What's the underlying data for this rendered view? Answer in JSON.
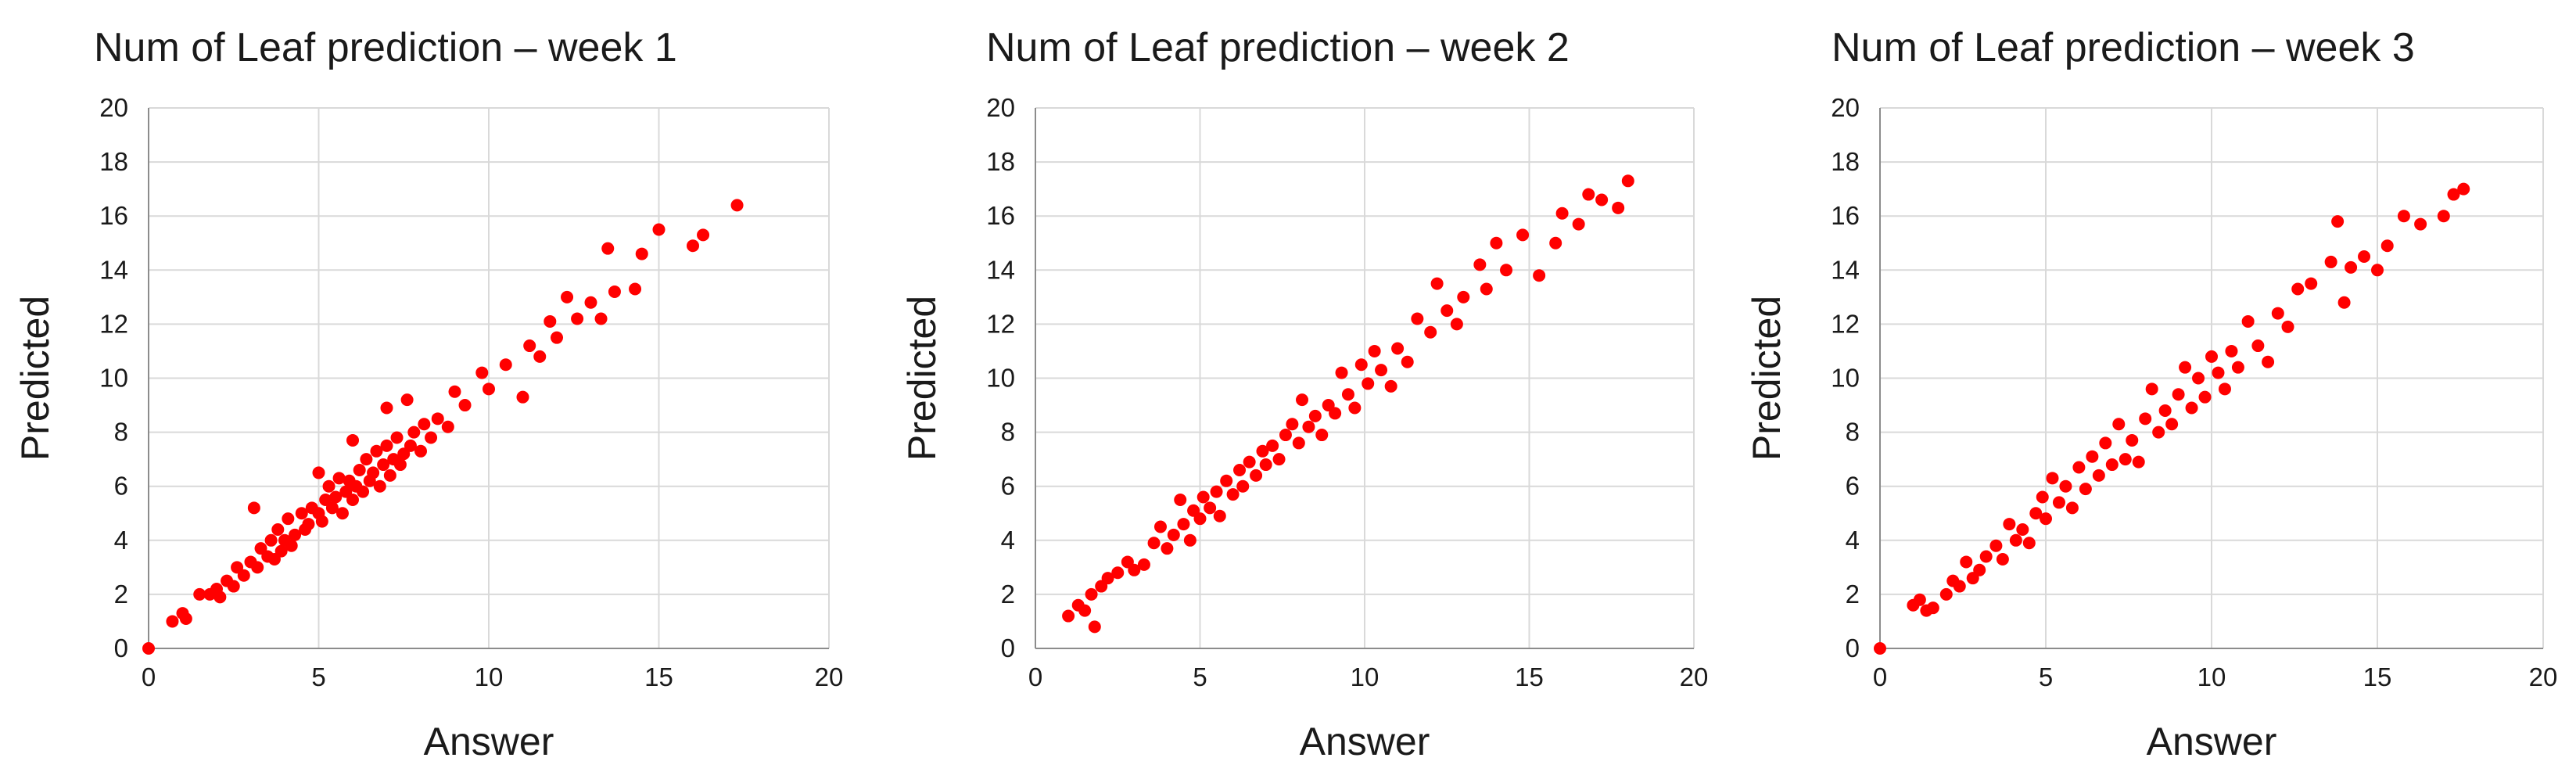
{
  "colors": {
    "point": "#ff0000",
    "grid": "#d9d9d9",
    "axis": "#8c8c8c"
  },
  "chart_data": [
    {
      "type": "scatter",
      "title": "Num of Leaf prediction – week 1",
      "xlabel": "Answer",
      "ylabel": "Predicted",
      "xlim": [
        0,
        20
      ],
      "ylim": [
        0,
        20
      ],
      "xticks": [
        "0",
        "5",
        "10",
        "15",
        "20"
      ],
      "yticks": [
        "0",
        "2",
        "4",
        "6",
        "8",
        "10",
        "12",
        "14",
        "16",
        "18",
        "20"
      ],
      "grid": true,
      "series": [
        {
          "color": "#ff0000",
          "points": [
            [
              0,
              0
            ],
            [
              0.7,
              1.0
            ],
            [
              1.0,
              1.3
            ],
            [
              1.1,
              1.1
            ],
            [
              1.5,
              2.0
            ],
            [
              1.8,
              2.0
            ],
            [
              2.0,
              2.2
            ],
            [
              2.1,
              1.9
            ],
            [
              2.3,
              2.5
            ],
            [
              2.5,
              2.3
            ],
            [
              2.6,
              3.0
            ],
            [
              2.8,
              2.7
            ],
            [
              3.0,
              3.2
            ],
            [
              3.1,
              5.2
            ],
            [
              3.2,
              3.0
            ],
            [
              3.3,
              3.7
            ],
            [
              3.5,
              3.4
            ],
            [
              3.6,
              4.0
            ],
            [
              3.7,
              3.3
            ],
            [
              3.8,
              4.4
            ],
            [
              3.9,
              3.6
            ],
            [
              4.0,
              4.0
            ],
            [
              4.1,
              4.8
            ],
            [
              4.2,
              3.8
            ],
            [
              4.3,
              4.2
            ],
            [
              4.5,
              5.0
            ],
            [
              4.6,
              4.4
            ],
            [
              4.7,
              4.6
            ],
            [
              4.8,
              5.2
            ],
            [
              5.0,
              5.0
            ],
            [
              5.0,
              6.5
            ],
            [
              5.1,
              4.7
            ],
            [
              5.2,
              5.5
            ],
            [
              5.3,
              6.0
            ],
            [
              5.4,
              5.2
            ],
            [
              5.5,
              5.6
            ],
            [
              5.6,
              6.3
            ],
            [
              5.7,
              5.0
            ],
            [
              5.8,
              5.8
            ],
            [
              5.9,
              6.2
            ],
            [
              6.0,
              5.5
            ],
            [
              6.0,
              7.7
            ],
            [
              6.1,
              6.0
            ],
            [
              6.2,
              6.6
            ],
            [
              6.3,
              5.8
            ],
            [
              6.4,
              7.0
            ],
            [
              6.5,
              6.2
            ],
            [
              6.6,
              6.5
            ],
            [
              6.7,
              7.3
            ],
            [
              6.8,
              6.0
            ],
            [
              6.9,
              6.8
            ],
            [
              7.0,
              7.5
            ],
            [
              7.0,
              8.9
            ],
            [
              7.1,
              6.4
            ],
            [
              7.2,
              7.0
            ],
            [
              7.3,
              7.8
            ],
            [
              7.4,
              6.8
            ],
            [
              7.5,
              7.2
            ],
            [
              7.6,
              9.2
            ],
            [
              7.7,
              7.5
            ],
            [
              7.8,
              8.0
            ],
            [
              8.0,
              7.3
            ],
            [
              8.1,
              8.3
            ],
            [
              8.3,
              7.8
            ],
            [
              8.5,
              8.5
            ],
            [
              8.8,
              8.2
            ],
            [
              9.0,
              9.5
            ],
            [
              9.3,
              9.0
            ],
            [
              9.8,
              10.2
            ],
            [
              10.0,
              9.6
            ],
            [
              10.5,
              10.5
            ],
            [
              11.0,
              9.3
            ],
            [
              11.2,
              11.2
            ],
            [
              11.5,
              10.8
            ],
            [
              11.8,
              12.1
            ],
            [
              12.0,
              11.5
            ],
            [
              12.3,
              13.0
            ],
            [
              12.6,
              12.2
            ],
            [
              13.0,
              12.8
            ],
            [
              13.3,
              12.2
            ],
            [
              13.5,
              14.8
            ],
            [
              13.7,
              13.2
            ],
            [
              14.3,
              13.3
            ],
            [
              14.5,
              14.6
            ],
            [
              15.0,
              15.5
            ],
            [
              16.0,
              14.9
            ],
            [
              16.3,
              15.3
            ],
            [
              17.3,
              16.4
            ]
          ]
        }
      ]
    },
    {
      "type": "scatter",
      "title": "Num of Leaf prediction – week 2",
      "xlabel": "Answer",
      "ylabel": "Predicted",
      "xlim": [
        0,
        20
      ],
      "ylim": [
        0,
        20
      ],
      "xticks": [
        "0",
        "5",
        "10",
        "15",
        "20"
      ],
      "yticks": [
        "0",
        "2",
        "4",
        "6",
        "8",
        "10",
        "12",
        "14",
        "16",
        "18",
        "20"
      ],
      "grid": true,
      "series": [
        {
          "color": "#ff0000",
          "points": [
            [
              1.0,
              1.2
            ],
            [
              1.3,
              1.6
            ],
            [
              1.5,
              1.4
            ],
            [
              1.7,
              2.0
            ],
            [
              1.8,
              0.8
            ],
            [
              2.0,
              2.3
            ],
            [
              2.2,
              2.6
            ],
            [
              2.5,
              2.8
            ],
            [
              2.8,
              3.2
            ],
            [
              3.0,
              2.9
            ],
            [
              3.3,
              3.1
            ],
            [
              3.6,
              3.9
            ],
            [
              3.8,
              4.5
            ],
            [
              4.0,
              3.7
            ],
            [
              4.2,
              4.2
            ],
            [
              4.4,
              5.5
            ],
            [
              4.5,
              4.6
            ],
            [
              4.7,
              4.0
            ],
            [
              4.8,
              5.1
            ],
            [
              5.0,
              4.8
            ],
            [
              5.1,
              5.6
            ],
            [
              5.3,
              5.2
            ],
            [
              5.5,
              5.8
            ],
            [
              5.6,
              4.9
            ],
            [
              5.8,
              6.2
            ],
            [
              6.0,
              5.7
            ],
            [
              6.2,
              6.6
            ],
            [
              6.3,
              6.0
            ],
            [
              6.5,
              6.9
            ],
            [
              6.7,
              6.4
            ],
            [
              6.9,
              7.3
            ],
            [
              7.0,
              6.8
            ],
            [
              7.2,
              7.5
            ],
            [
              7.4,
              7.0
            ],
            [
              7.6,
              7.9
            ],
            [
              7.8,
              8.3
            ],
            [
              8.0,
              7.6
            ],
            [
              8.1,
              9.2
            ],
            [
              8.3,
              8.2
            ],
            [
              8.5,
              8.6
            ],
            [
              8.7,
              7.9
            ],
            [
              8.9,
              9.0
            ],
            [
              9.1,
              8.7
            ],
            [
              9.3,
              10.2
            ],
            [
              9.5,
              9.4
            ],
            [
              9.7,
              8.9
            ],
            [
              9.9,
              10.5
            ],
            [
              10.1,
              9.8
            ],
            [
              10.3,
              11.0
            ],
            [
              10.5,
              10.3
            ],
            [
              10.8,
              9.7
            ],
            [
              11.0,
              11.1
            ],
            [
              11.3,
              10.6
            ],
            [
              11.6,
              12.2
            ],
            [
              12.0,
              11.7
            ],
            [
              12.2,
              13.5
            ],
            [
              12.5,
              12.5
            ],
            [
              12.8,
              12.0
            ],
            [
              13.0,
              13.0
            ],
            [
              13.5,
              14.2
            ],
            [
              13.7,
              13.3
            ],
            [
              14.0,
              15.0
            ],
            [
              14.3,
              14.0
            ],
            [
              14.8,
              15.3
            ],
            [
              15.3,
              13.8
            ],
            [
              15.8,
              15.0
            ],
            [
              16.0,
              16.1
            ],
            [
              16.5,
              15.7
            ],
            [
              16.8,
              16.8
            ],
            [
              17.2,
              16.6
            ],
            [
              17.7,
              16.3
            ],
            [
              18.0,
              17.3
            ]
          ]
        }
      ]
    },
    {
      "type": "scatter",
      "title": "Num of Leaf prediction – week 3",
      "xlabel": "Answer",
      "ylabel": "Predicted",
      "xlim": [
        0,
        20
      ],
      "ylim": [
        0,
        20
      ],
      "xticks": [
        "0",
        "5",
        "10",
        "15",
        "20"
      ],
      "yticks": [
        "0",
        "2",
        "4",
        "6",
        "8",
        "10",
        "12",
        "14",
        "16",
        "18",
        "20"
      ],
      "grid": true,
      "series": [
        {
          "color": "#ff0000",
          "points": [
            [
              0,
              0
            ],
            [
              1.0,
              1.6
            ],
            [
              1.2,
              1.8
            ],
            [
              1.4,
              1.4
            ],
            [
              1.6,
              1.5
            ],
            [
              2.0,
              2.0
            ],
            [
              2.2,
              2.5
            ],
            [
              2.4,
              2.3
            ],
            [
              2.6,
              3.2
            ],
            [
              2.8,
              2.6
            ],
            [
              3.0,
              2.9
            ],
            [
              3.2,
              3.4
            ],
            [
              3.5,
              3.8
            ],
            [
              3.7,
              3.3
            ],
            [
              3.9,
              4.6
            ],
            [
              4.1,
              4.0
            ],
            [
              4.3,
              4.4
            ],
            [
              4.5,
              3.9
            ],
            [
              4.7,
              5.0
            ],
            [
              4.9,
              5.6
            ],
            [
              5.0,
              4.8
            ],
            [
              5.2,
              6.3
            ],
            [
              5.4,
              5.4
            ],
            [
              5.6,
              6.0
            ],
            [
              5.8,
              5.2
            ],
            [
              6.0,
              6.7
            ],
            [
              6.2,
              5.9
            ],
            [
              6.4,
              7.1
            ],
            [
              6.6,
              6.4
            ],
            [
              6.8,
              7.6
            ],
            [
              7.0,
              6.8
            ],
            [
              7.2,
              8.3
            ],
            [
              7.4,
              7.0
            ],
            [
              7.6,
              7.7
            ],
            [
              7.8,
              6.9
            ],
            [
              8.0,
              8.5
            ],
            [
              8.2,
              9.6
            ],
            [
              8.4,
              8.0
            ],
            [
              8.6,
              8.8
            ],
            [
              8.8,
              8.3
            ],
            [
              9.0,
              9.4
            ],
            [
              9.2,
              10.4
            ],
            [
              9.4,
              8.9
            ],
            [
              9.6,
              10.0
            ],
            [
              9.8,
              9.3
            ],
            [
              10.0,
              10.8
            ],
            [
              10.2,
              10.2
            ],
            [
              10.4,
              9.6
            ],
            [
              10.6,
              11.0
            ],
            [
              10.8,
              10.4
            ],
            [
              11.1,
              12.1
            ],
            [
              11.4,
              11.2
            ],
            [
              11.7,
              10.6
            ],
            [
              12.0,
              12.4
            ],
            [
              12.3,
              11.9
            ],
            [
              12.6,
              13.3
            ],
            [
              13.0,
              13.5
            ],
            [
              13.6,
              14.3
            ],
            [
              13.8,
              15.8
            ],
            [
              14.0,
              12.8
            ],
            [
              14.2,
              14.1
            ],
            [
              14.6,
              14.5
            ],
            [
              15.0,
              14.0
            ],
            [
              15.3,
              14.9
            ],
            [
              15.8,
              16.0
            ],
            [
              16.3,
              15.7
            ],
            [
              17.0,
              16.0
            ],
            [
              17.3,
              16.8
            ],
            [
              17.6,
              17.0
            ]
          ]
        }
      ]
    }
  ]
}
